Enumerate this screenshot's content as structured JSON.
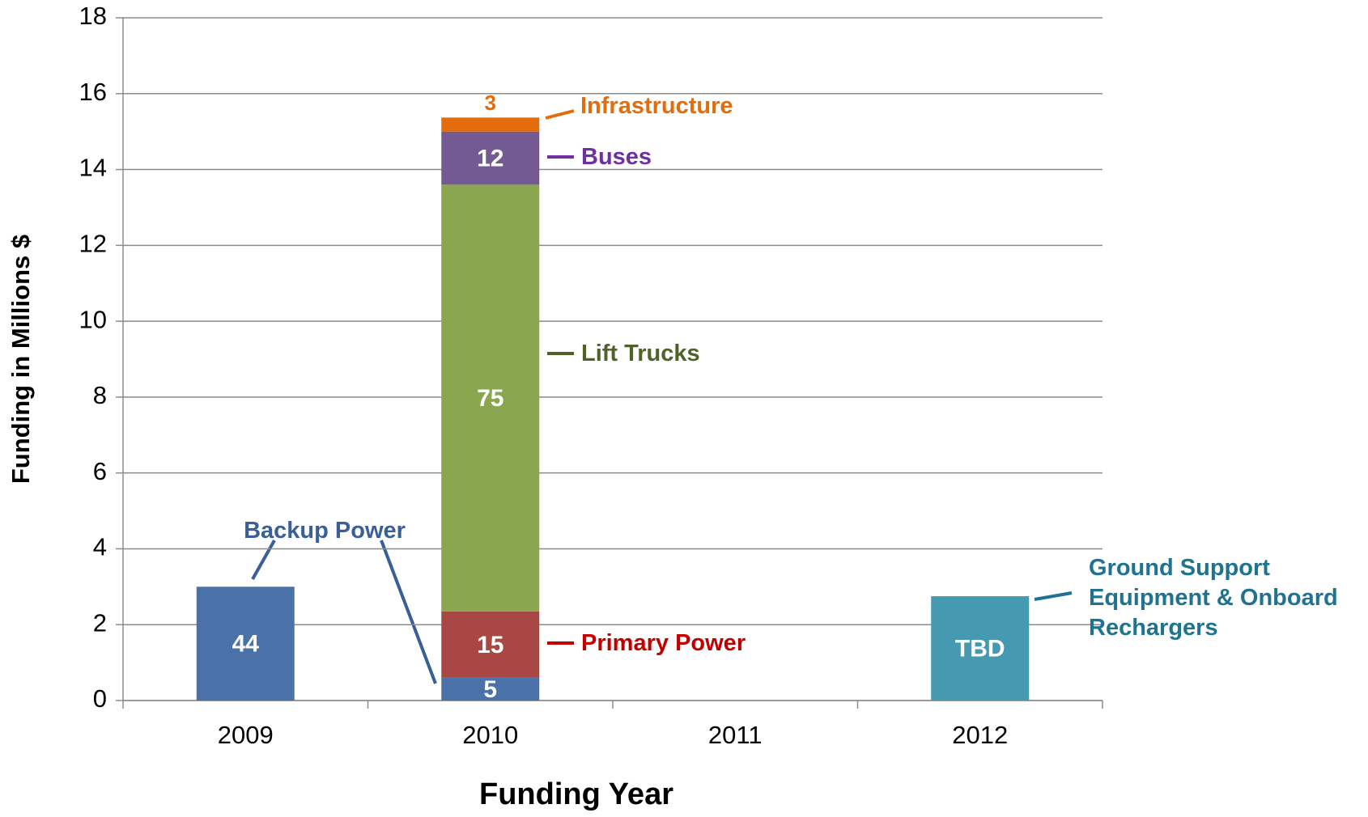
{
  "chart_data": {
    "type": "stacked_bar",
    "x_label": "Funding Year",
    "y_label": "Funding in Millions $",
    "categories": [
      "2009",
      "2010",
      "2011",
      "2012"
    ],
    "ylim": [
      0,
      18
    ],
    "yticks": [
      0,
      2,
      4,
      6,
      8,
      10,
      12,
      14,
      16,
      18
    ],
    "grid": true,
    "series": [
      {
        "name": "Backup Power",
        "color": "#4a72a8",
        "label_color": "#3a5f97",
        "values": [
          3.0,
          0.6,
          null,
          null
        ],
        "labels": [
          "44",
          "5",
          null,
          null
        ]
      },
      {
        "name": "Primary Power",
        "color": "#a94745",
        "label_color": "#c00000",
        "values": [
          null,
          1.75,
          null,
          null
        ],
        "labels": [
          null,
          "15",
          null,
          null
        ]
      },
      {
        "name": "Lift Trucks",
        "color": "#8aa64f",
        "label_color": "#4f6228",
        "values": [
          null,
          11.25,
          null,
          null
        ],
        "labels": [
          null,
          "75",
          null,
          null
        ]
      },
      {
        "name": "Buses",
        "color": "#735a92",
        "label_color": "#7030a0",
        "values": [
          null,
          1.4,
          null,
          null
        ],
        "labels": [
          null,
          "12",
          null,
          null
        ]
      },
      {
        "name": "Infrastructure",
        "color": "#e46c0a",
        "label_color": "#e46c0a",
        "values": [
          null,
          0.37,
          null,
          null
        ],
        "labels": [
          null,
          "3",
          null,
          null
        ]
      },
      {
        "name": "Ground Support Equipment & Onboard Rechargers",
        "color": "#4599b0",
        "label_color": "#1f7391",
        "values": [
          null,
          null,
          null,
          2.75
        ],
        "labels": [
          null,
          null,
          null,
          "TBD"
        ]
      }
    ]
  }
}
